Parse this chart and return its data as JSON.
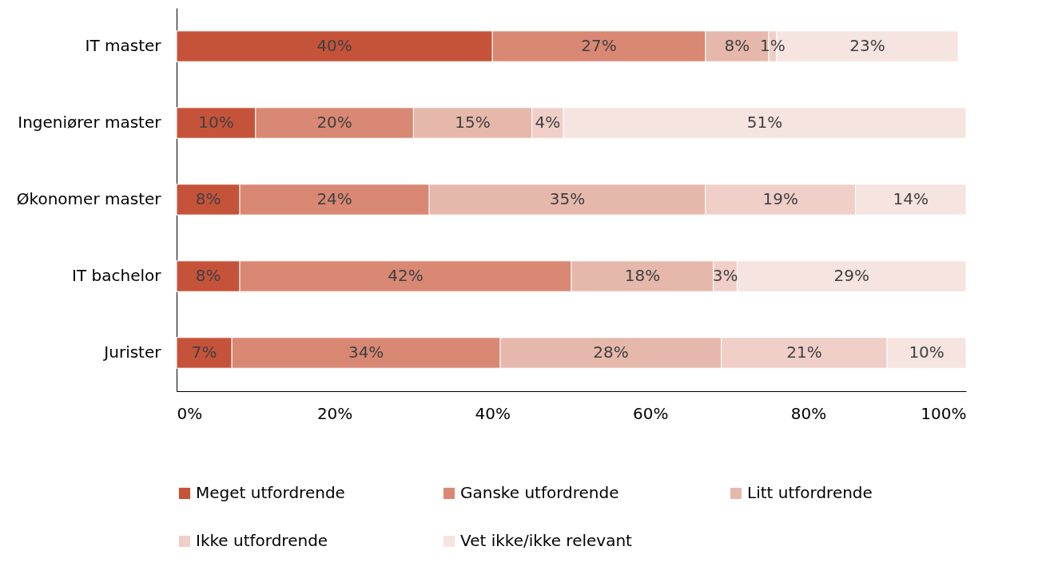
{
  "chart_data": {
    "type": "bar",
    "orientation": "horizontal",
    "stacked": true,
    "categories": [
      "IT master",
      "Ingeniører master",
      "Økonomer master",
      "IT bachelor",
      "Jurister"
    ],
    "series": [
      {
        "name": "Meget utfordrende",
        "color": "#c5533a",
        "values": [
          40,
          10,
          8,
          8,
          7
        ],
        "value_labels": [
          "40%",
          "10%",
          "8%",
          "8%",
          "7%"
        ]
      },
      {
        "name": "Ganske utfordrende",
        "color": "#d98874",
        "values": [
          27,
          20,
          24,
          42,
          34
        ],
        "value_labels": [
          "27%",
          "20%",
          "24%",
          "42%",
          "34%"
        ]
      },
      {
        "name": "Litt utfordrende",
        "color": "#e6b8ab",
        "values": [
          8,
          15,
          35,
          18,
          28
        ],
        "value_labels": [
          "8%",
          "15%",
          "35%",
          "18%",
          "28%"
        ]
      },
      {
        "name": "Ikke utfordrende",
        "color": "#f0cfc8",
        "values": [
          1,
          4,
          19,
          3,
          21
        ],
        "value_labels": [
          "1%",
          "4%",
          "19%",
          "3%",
          "21%"
        ]
      },
      {
        "name": "Vet ikke/ikke relevant",
        "color": "#f5e4df",
        "values": [
          23,
          51,
          14,
          29,
          10
        ],
        "value_labels": [
          "23%",
          "51%",
          "14%",
          "29%",
          "10%"
        ]
      }
    ],
    "xlim": [
      0,
      100
    ],
    "xticks": [
      {
        "value": 0,
        "label": "0%"
      },
      {
        "value": 20,
        "label": "20%"
      },
      {
        "value": 40,
        "label": "40%"
      },
      {
        "value": 60,
        "label": "60%"
      },
      {
        "value": 80,
        "label": "80%"
      },
      {
        "value": 100,
        "label": "100%"
      }
    ],
    "grid": false,
    "legend": "bottom"
  }
}
